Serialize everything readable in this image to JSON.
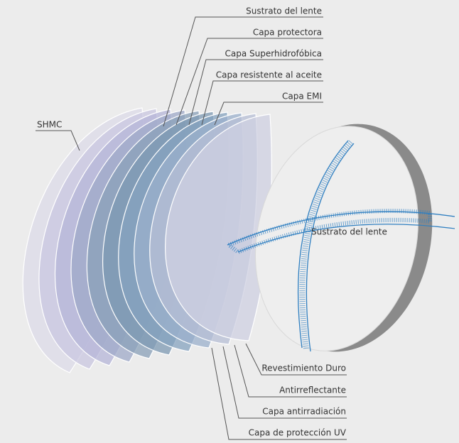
{
  "top_labels": [
    "Sustrato del lente",
    "Capa protectora",
    "Capa Superhidrofóbica",
    "Capa resistente al aceite",
    "Capa EMI"
  ],
  "left_label": "SHMC",
  "center_label": "Sustrato del lente",
  "bottom_labels": [
    "Revestimiento Duro",
    "Antirreflectante",
    "Capa antirradiación",
    "Capa de protección UV"
  ]
}
